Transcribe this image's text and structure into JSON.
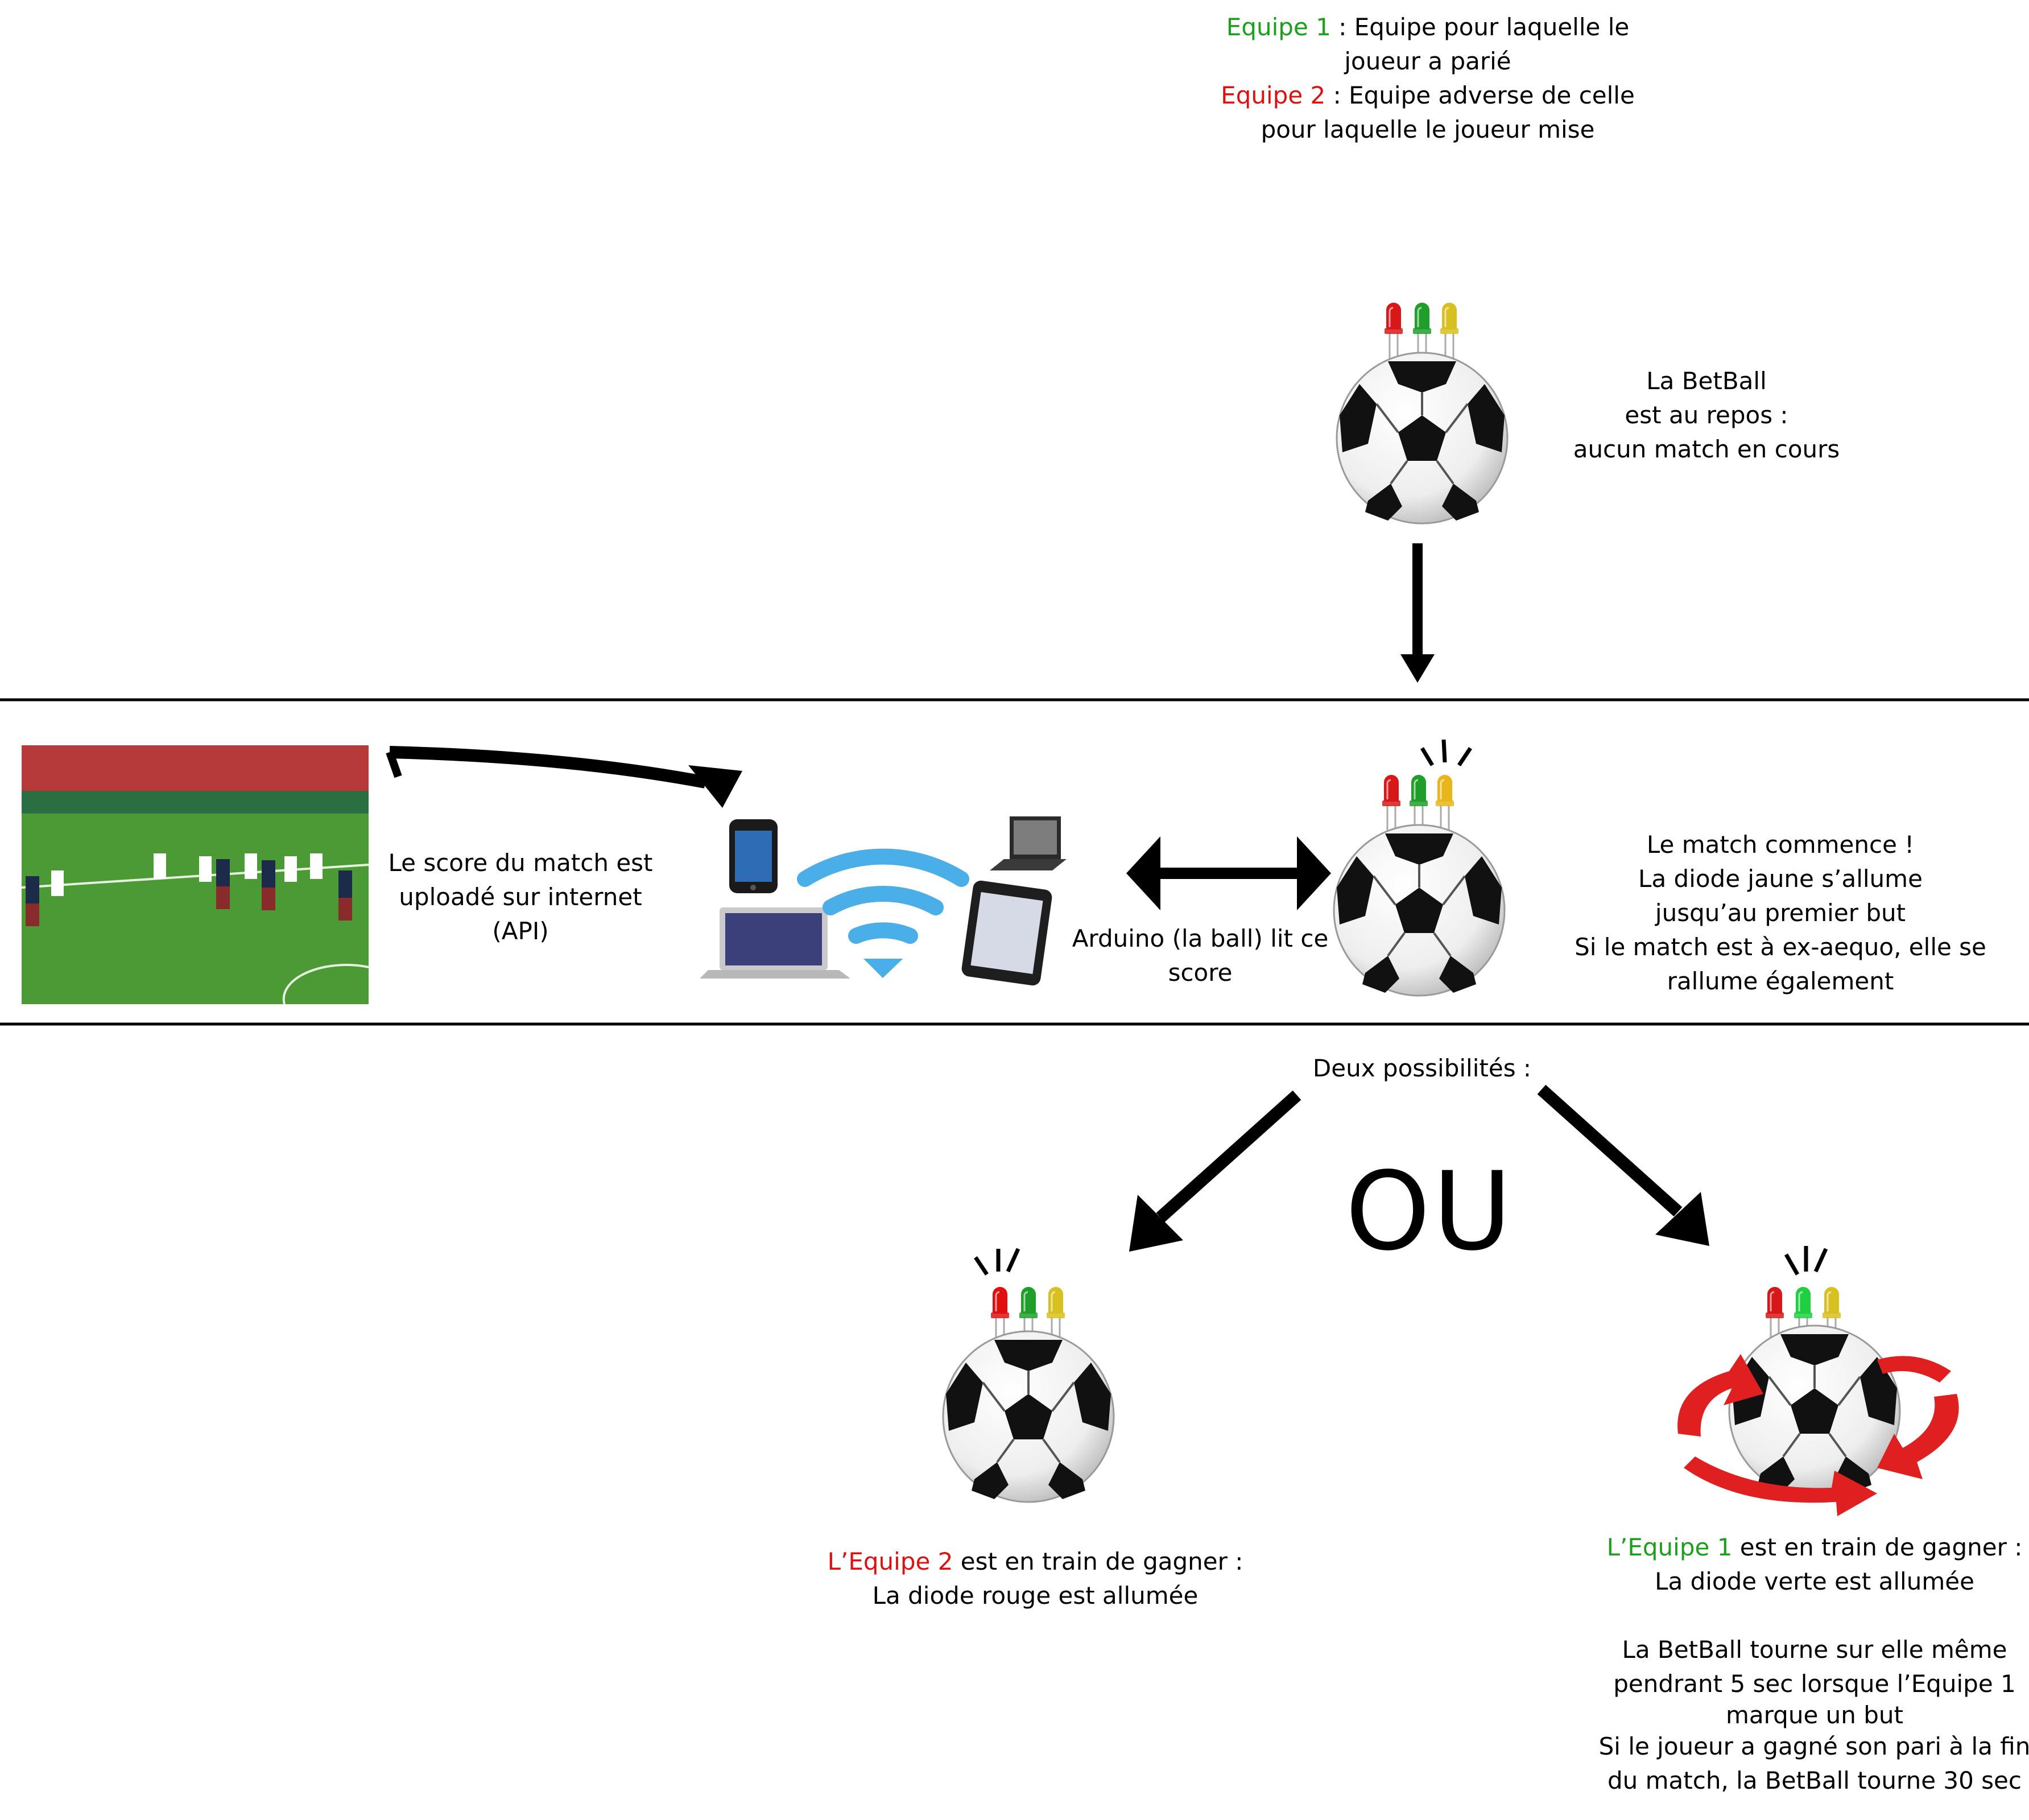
{
  "legend": {
    "team1_label": "Equipe 1",
    "team1_text": " : Equipe pour laquelle le",
    "team1_text2": "joueur a parié",
    "team2_label": "Equipe 2",
    "team2_text": " : Equipe adverse de celle",
    "team2_text2": "pour laquelle le joueur mise"
  },
  "state_rest": {
    "line1": "La BetBall",
    "line2": "est au repos :",
    "line3": "aucun match en cours"
  },
  "upload_text": {
    "line1": "Le score du match est",
    "line2": "uploadé sur internet",
    "line3": "(API)"
  },
  "arduino_text": {
    "line1": "Arduino (la ball) lit ce",
    "line2": "score"
  },
  "match_start": {
    "line1": "Le match commence !",
    "line2": "La diode jaune s’allume",
    "line3": "jusqu’au premier but",
    "line4": "Si le match est à ex-aequo, elle se",
    "line5": "rallume également"
  },
  "two_options": "Deux possibilités :",
  "or_text": "OU",
  "team2_winning": {
    "team_label": "L’Equipe 2",
    "line1_rest": " est en train de gagner :",
    "line2": "La diode rouge est allumée"
  },
  "team1_winning": {
    "team_label": "L’Equipe 1",
    "line1_rest": " est en train de gagner :",
    "line2": "La diode verte est allumée",
    "line3": "La BetBall tourne sur elle même",
    "line4": "pendrant 5 sec lorsque l’Equipe 1",
    "line5": "marque un but",
    "line6": "Si le joueur a gagné son pari à la fin",
    "line7": "du match, la BetBall tourne 30 sec"
  },
  "colors": {
    "team1": "#1aa01a",
    "team2": "#e01010",
    "led_red": "#d81818",
    "led_green": "#1f9e2a",
    "led_yellow": "#d8c020",
    "wifi_blue": "#4aaee8",
    "pitch_green": "#3f8a2e",
    "rotation_arrow": "#e02020"
  },
  "icons": {
    "ball": "soccer-ball-icon",
    "led": "led-diode-icon",
    "wifi": "wifi-icon",
    "phone": "smartphone-icon",
    "laptop": "laptop-icon",
    "tablet": "tablet-icon",
    "photo": "football-match-photo",
    "rotate": "rotation-arrows-icon"
  }
}
